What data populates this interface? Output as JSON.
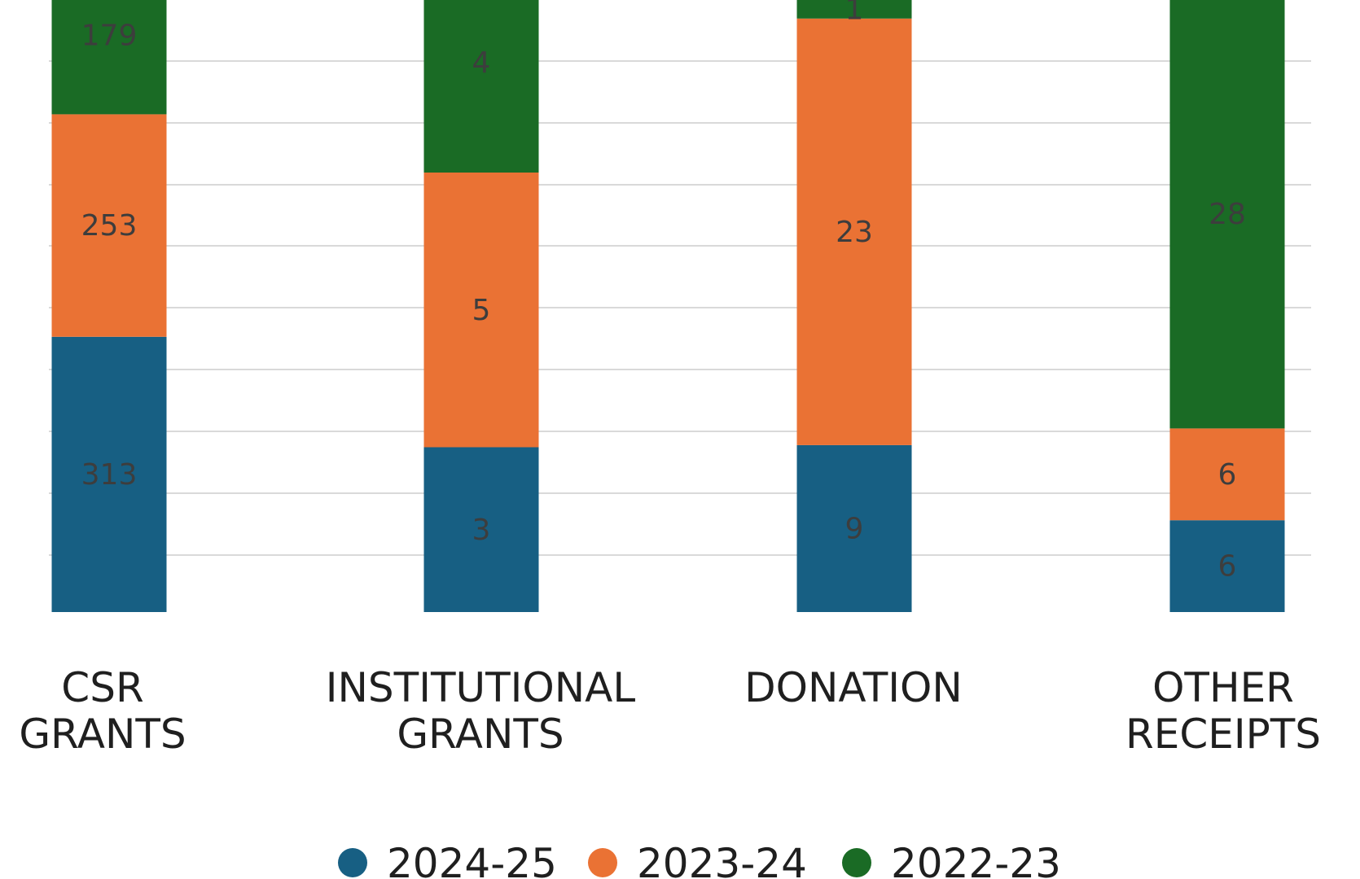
{
  "chart_data": {
    "type": "bar",
    "stacked": true,
    "title": "",
    "xlabel": "",
    "ylabel": "",
    "categories": [
      "CSR GRANTS",
      "INSTITUTIONAL GRANTS",
      "DONATION",
      "OTHER RECEIPTS"
    ],
    "category_lines": [
      [
        "CSR",
        "GRANTS"
      ],
      [
        "INSTITUTIONAL",
        "GRANTS"
      ],
      [
        "DONATION"
      ],
      [
        "OTHER",
        "RECEIPTS"
      ]
    ],
    "series": [
      {
        "name": "2024-25",
        "color": "#175f83",
        "values": [
          313,
          3,
          9,
          6
        ]
      },
      {
        "name": "2023-24",
        "color": "#ea7234",
        "values": [
          253,
          5,
          23,
          6
        ]
      },
      {
        "name": "2022-23",
        "color": "#1a6b25",
        "values": [
          179,
          4,
          1,
          28
        ]
      }
    ],
    "value_labels": [
      [
        "313",
        "3",
        "9",
        "6"
      ],
      [
        "253",
        "5",
        "23",
        "6"
      ],
      [
        "179",
        "4",
        "1",
        "28"
      ]
    ],
    "grid": true,
    "legend_position": "bottom",
    "gridline_color": "#d9d9d9"
  }
}
